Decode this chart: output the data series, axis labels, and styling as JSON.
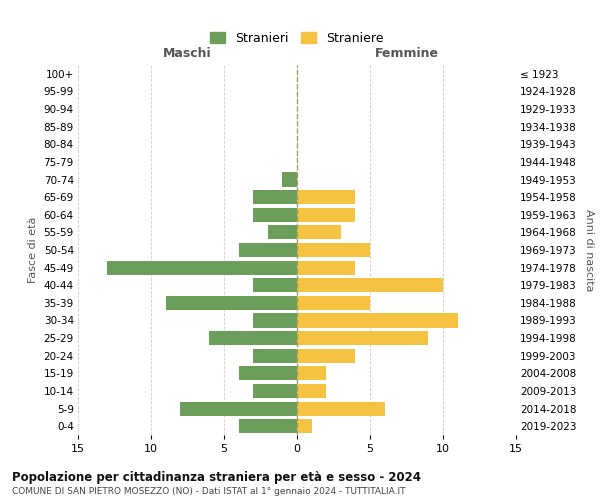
{
  "age_groups": [
    "0-4",
    "5-9",
    "10-14",
    "15-19",
    "20-24",
    "25-29",
    "30-34",
    "35-39",
    "40-44",
    "45-49",
    "50-54",
    "55-59",
    "60-64",
    "65-69",
    "70-74",
    "75-79",
    "80-84",
    "85-89",
    "90-94",
    "95-99",
    "100+"
  ],
  "birth_years": [
    "2019-2023",
    "2014-2018",
    "2009-2013",
    "2004-2008",
    "1999-2003",
    "1994-1998",
    "1989-1993",
    "1984-1988",
    "1979-1983",
    "1974-1978",
    "1969-1973",
    "1964-1968",
    "1959-1963",
    "1954-1958",
    "1949-1953",
    "1944-1948",
    "1939-1943",
    "1934-1938",
    "1929-1933",
    "1924-1928",
    "≤ 1923"
  ],
  "maschi": [
    4,
    8,
    3,
    4,
    3,
    6,
    3,
    9,
    3,
    13,
    4,
    2,
    3,
    3,
    1,
    0,
    0,
    0,
    0,
    0,
    0
  ],
  "femmine": [
    1,
    6,
    2,
    2,
    4,
    9,
    11,
    5,
    10,
    4,
    5,
    3,
    4,
    4,
    0,
    0,
    0,
    0,
    0,
    0,
    0
  ],
  "color_maschi": "#6a9e5a",
  "color_femmine": "#f5c242",
  "color_center_line": "#a0a060",
  "xlim": 15,
  "title": "Popolazione per cittadinanza straniera per età e sesso - 2024",
  "subtitle": "COMUNE DI SAN PIETRO MOSEZZO (NO) - Dati ISTAT al 1° gennaio 2024 - TUTTITALIA.IT",
  "xlabel_left": "Maschi",
  "xlabel_right": "Femmine",
  "ylabel_left": "Fasce di età",
  "ylabel_right": "Anni di nascita",
  "legend_maschi": "Stranieri",
  "legend_femmine": "Straniere",
  "bg_color": "#ffffff",
  "grid_color": "#cccccc"
}
